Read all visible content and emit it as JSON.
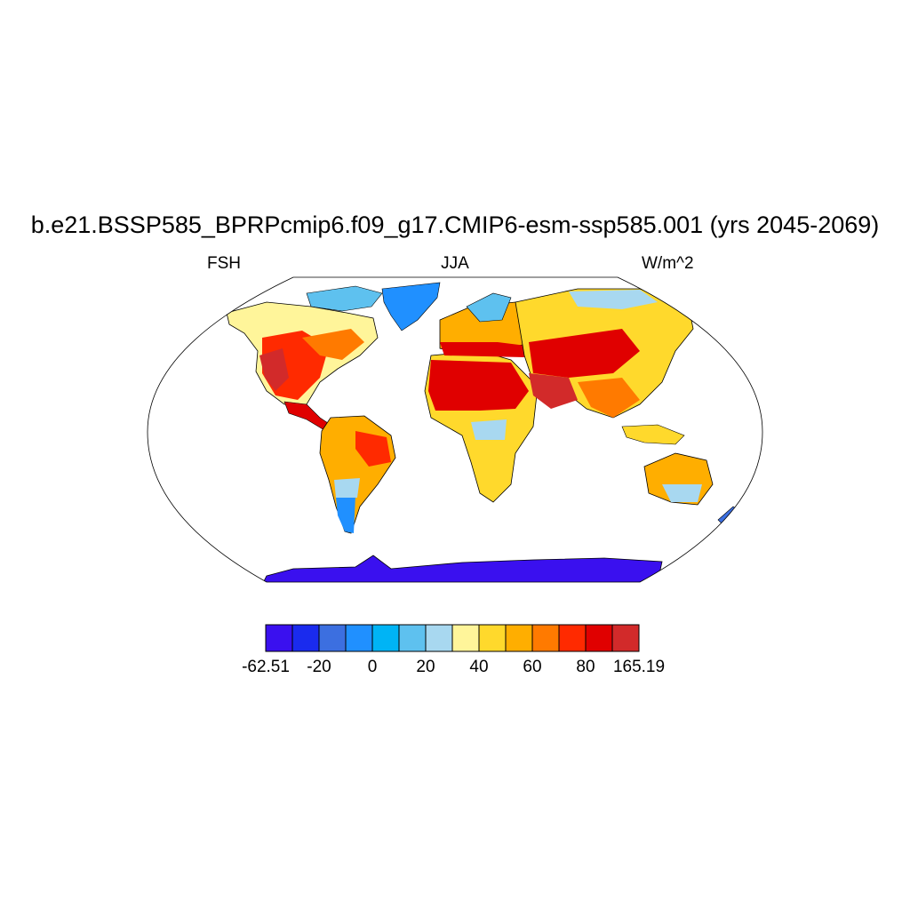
{
  "title": "b.e21.BSSP585_BPRPcmip6.f09_g17.CMIP6-esm-ssp585.001 (yrs 2045-2069)",
  "left_label": "FSH",
  "center_label": "JJA",
  "right_label": "W/m^2",
  "projection": "Robinson",
  "variable": "FSH",
  "season": "JJA",
  "units": "W/m^2",
  "colorbar": {
    "colors": [
      "#3a10ef",
      "#1a2bee",
      "#3c6fe0",
      "#2090ff",
      "#00b4f5",
      "#5ec1ef",
      "#a8d8f0",
      "#fff59a",
      "#ffd92c",
      "#ffae00",
      "#ff7a00",
      "#ff2a00",
      "#e00000",
      "#d22a2a"
    ],
    "tick_labels": [
      "-62.51",
      "-20",
      "0",
      "20",
      "40",
      "60",
      "80",
      "165.19"
    ],
    "tick_boundary_index": [
      0,
      2,
      4,
      6,
      8,
      10,
      12,
      14
    ]
  },
  "ocean_color": "#ffffff",
  "coastline_color": "#000000"
}
